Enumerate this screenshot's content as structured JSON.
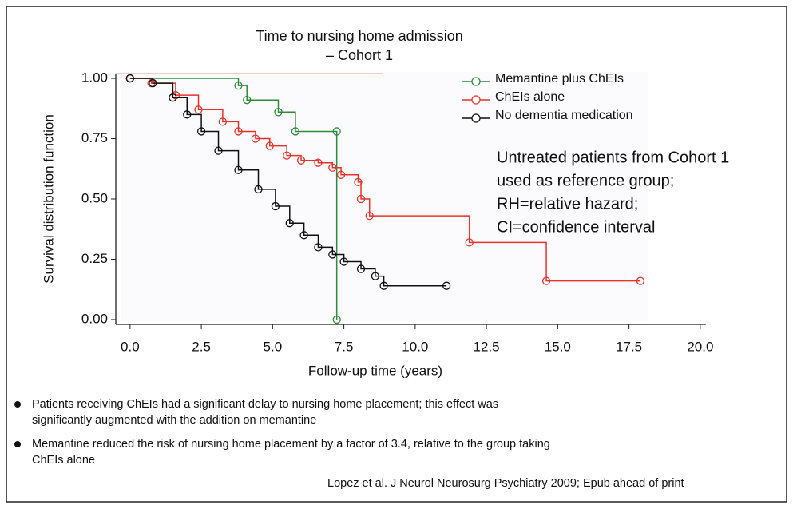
{
  "chart_data": {
    "type": "line",
    "step": "post",
    "title": [
      "Time to nursing home admission",
      "– Cohort 1"
    ],
    "xlabel": "Follow-up time (years)",
    "ylabel": "Survival distribution function",
    "xlim": [
      -0.5,
      20.2
    ],
    "ylim": [
      -0.02,
      1.02
    ],
    "xticks": [
      {
        "value": 0,
        "label": "0.0"
      },
      {
        "value": 2.5,
        "label": "2.5"
      },
      {
        "value": 5,
        "label": "5.0"
      },
      {
        "value": 7.5,
        "label": "7.5"
      },
      {
        "value": 10,
        "label": "10.0"
      },
      {
        "value": 12.5,
        "label": "12.5"
      },
      {
        "value": 15,
        "label": "15.0"
      },
      {
        "value": 17.5,
        "label": "17.5"
      },
      {
        "value": 20,
        "label": "20.0"
      }
    ],
    "yticks": [
      {
        "value": 0,
        "label": "0.00"
      },
      {
        "value": 0.25,
        "label": "0.25"
      },
      {
        "value": 0.5,
        "label": "0.50"
      },
      {
        "value": 0.75,
        "label": "0.75"
      },
      {
        "value": 1,
        "label": "1.00"
      }
    ],
    "series": [
      {
        "name": "Memantine plus ChEIs",
        "color": "#2e8b3a",
        "x": [
          0,
          3.8,
          4.1,
          5.2,
          5.8,
          7.25,
          7.25
        ],
        "values": [
          1.0,
          0.97,
          0.91,
          0.86,
          0.78,
          0.78,
          0.0
        ]
      },
      {
        "name": "ChEIs alone",
        "color": "#e8322a",
        "x": [
          0,
          0.75,
          1.6,
          2.4,
          3.25,
          3.8,
          4.4,
          4.9,
          5.5,
          6.0,
          6.6,
          7.1,
          7.4,
          8.0,
          8.1,
          8.4,
          11.9,
          14.6,
          17.9
        ],
        "values": [
          1.0,
          0.98,
          0.93,
          0.87,
          0.82,
          0.78,
          0.75,
          0.72,
          0.68,
          0.66,
          0.65,
          0.63,
          0.6,
          0.57,
          0.5,
          0.43,
          0.32,
          0.16,
          0.16
        ]
      },
      {
        "name": "No dementia medication",
        "color": "#111111",
        "x": [
          0,
          0.8,
          1.5,
          2.0,
          2.5,
          3.1,
          3.8,
          4.5,
          5.1,
          5.6,
          6.1,
          6.6,
          7.1,
          7.5,
          8.1,
          8.6,
          8.9,
          11.1
        ],
        "values": [
          1.0,
          0.98,
          0.92,
          0.85,
          0.78,
          0.7,
          0.62,
          0.54,
          0.47,
          0.4,
          0.35,
          0.3,
          0.27,
          0.24,
          0.21,
          0.18,
          0.14,
          0.14
        ]
      }
    ],
    "annotation": [
      "Untreated patients from Cohort 1",
      "used as reference group;",
      "RH=relative hazard;",
      "CI=confidence interval"
    ]
  },
  "bullets": [
    [
      "Patients receiving ChEIs had a significant delay to nursing home placement; this effect was",
      "significantly augmented with the addition on memantine"
    ],
    [
      "Memantine reduced the risk of nursing home placement by a factor of 3.4, relative to the group taking",
      "ChEIs alone"
    ]
  ],
  "citation": "Lopez et al. J Neurol Neurosurg Psychiatry 2009; Epub ahead of print"
}
